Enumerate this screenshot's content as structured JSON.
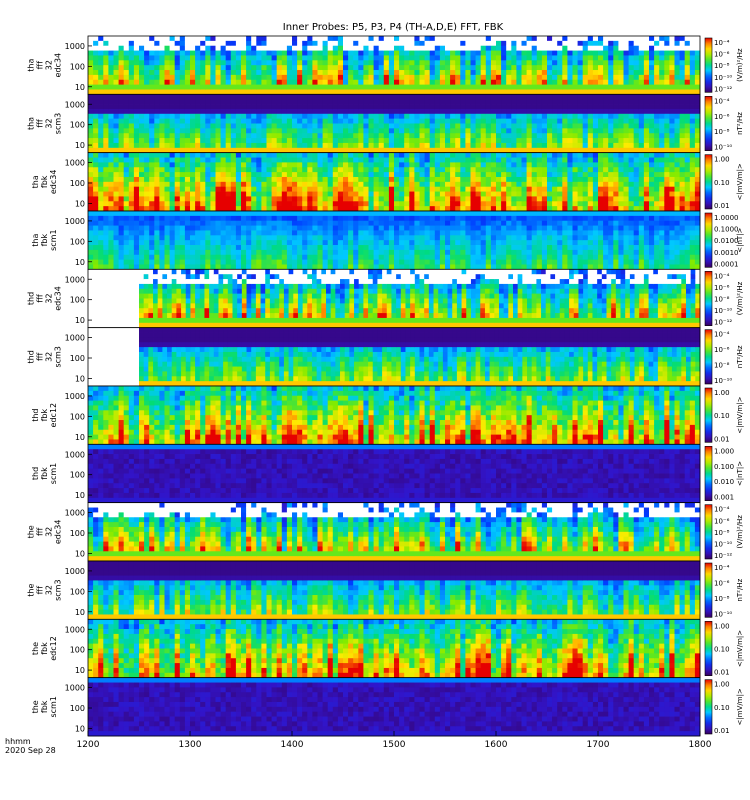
{
  "chart_data": {
    "type": "heatmap",
    "title": "Inner Probes: P5, P3, P4 (TH-A,D,E) FFT, FBK",
    "time_axis": {
      "ticks": [
        "1200",
        "1300",
        "1400",
        "1500",
        "1600",
        "1700",
        "1800"
      ],
      "range": [
        1200,
        1800
      ],
      "label_line1": "hhmm",
      "label_line2": "2020 Sep 28"
    },
    "colorbar_scheme": "rainbow (purple-blue-cyan-green-yellow-red)",
    "panels": [
      {
        "probe": "tha",
        "label": [
          "tha",
          "fff",
          "32",
          "edc34"
        ],
        "yticks": [
          "1000",
          "100",
          "10"
        ],
        "cb_ticks": [
          "10⁻⁴",
          "10⁻⁶",
          "10⁻⁸",
          "10⁻¹⁰",
          "10⁻¹²"
        ],
        "cb_units": "(V/m)²/Hz",
        "kind": "fff_e",
        "data_start": 1200
      },
      {
        "probe": "tha",
        "label": [
          "tha",
          "fff",
          "32",
          "scm3"
        ],
        "yticks": [
          "1000",
          "100",
          "10"
        ],
        "cb_ticks": [
          "10⁻⁴",
          "10⁻⁶",
          "10⁻⁸",
          "10⁻¹⁰"
        ],
        "cb_units": "nT²/Hz",
        "kind": "fff_b",
        "data_start": 1200
      },
      {
        "probe": "tha",
        "label": [
          "tha",
          "fbk",
          "edc34"
        ],
        "yticks": [
          "1000",
          "100",
          "10"
        ],
        "cb_ticks": [
          "1.00",
          "0.10",
          "0.01"
        ],
        "cb_units": "<|mV/m|>",
        "kind": "fbk_e",
        "data_start": 1200
      },
      {
        "probe": "tha",
        "label": [
          "tha",
          "fbk",
          "scm1"
        ],
        "yticks": [
          "1000",
          "100",
          "10"
        ],
        "cb_ticks": [
          "1.0000",
          "0.1000",
          "0.0100",
          "0.0010",
          "0.0001"
        ],
        "cb_units": "<|nT|>",
        "kind": "fbk_b",
        "data_start": 1200
      },
      {
        "probe": "thd",
        "label": [
          "thd",
          "fff",
          "32",
          "edc34"
        ],
        "yticks": [
          "1000",
          "100",
          "10"
        ],
        "cb_ticks": [
          "10⁻⁴",
          "10⁻⁶",
          "10⁻⁸",
          "10⁻¹⁰",
          "10⁻¹²"
        ],
        "cb_units": "(V/m)²/Hz",
        "kind": "fff_e",
        "data_start": 1250
      },
      {
        "probe": "thd",
        "label": [
          "thd",
          "fff",
          "32",
          "scm3"
        ],
        "yticks": [
          "1000",
          "100",
          "10"
        ],
        "cb_ticks": [
          "10⁻⁴",
          "10⁻⁶",
          "10⁻⁸",
          "10⁻¹⁰"
        ],
        "cb_units": "nT²/Hz",
        "kind": "fff_b",
        "data_start": 1250
      },
      {
        "probe": "thd",
        "label": [
          "thd",
          "fbk",
          "edc12"
        ],
        "yticks": [
          "1000",
          "100",
          "10"
        ],
        "cb_ticks": [
          "1.00",
          "0.10",
          "0.01"
        ],
        "cb_units": "<|mV/m|>",
        "kind": "fbk_e",
        "data_start": 1200
      },
      {
        "probe": "thd",
        "label": [
          "thd",
          "fbk",
          "scm1"
        ],
        "yticks": [
          "1000",
          "100",
          "10"
        ],
        "cb_ticks": [
          "1.000",
          "0.100",
          "0.010",
          "0.001"
        ],
        "cb_units": "<|nT|>",
        "kind": "fbk_b_dark",
        "data_start": 1200
      },
      {
        "probe": "the",
        "label": [
          "the",
          "fff",
          "32",
          "edc34"
        ],
        "yticks": [
          "1000",
          "100",
          "10"
        ],
        "cb_ticks": [
          "10⁻⁴",
          "10⁻⁶",
          "10⁻⁸",
          "10⁻¹⁰",
          "10⁻¹²"
        ],
        "cb_units": "(V/m)²/Hz",
        "kind": "fff_e",
        "data_start": 1200
      },
      {
        "probe": "the",
        "label": [
          "the",
          "fff",
          "32",
          "scm3"
        ],
        "yticks": [
          "1000",
          "100",
          "10"
        ],
        "cb_ticks": [
          "10⁻⁴",
          "10⁻⁶",
          "10⁻⁸",
          "10⁻¹⁰"
        ],
        "cb_units": "nT²/Hz",
        "kind": "fff_b",
        "data_start": 1200
      },
      {
        "probe": "the",
        "label": [
          "the",
          "fbk",
          "edc12"
        ],
        "yticks": [
          "1000",
          "100",
          "10"
        ],
        "cb_ticks": [
          "1.00",
          "0.10",
          "0.01"
        ],
        "cb_units": "<|mV/m|>",
        "kind": "fbk_e",
        "data_start": 1200
      },
      {
        "probe": "the",
        "label": [
          "the",
          "fbk",
          "scm1"
        ],
        "yticks": [
          "1000",
          "100",
          "10"
        ],
        "cb_ticks": [
          "1.00",
          "0.10",
          "0.01"
        ],
        "cb_units": "<|mV/m|>",
        "kind": "fbk_b_dark",
        "data_start": 1200
      }
    ]
  }
}
